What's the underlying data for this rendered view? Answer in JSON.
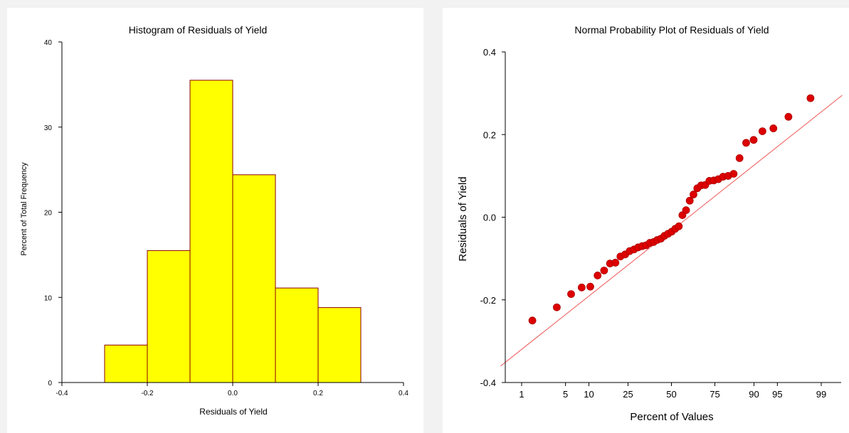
{
  "chart_data": [
    {
      "type": "bar",
      "title": "Histogram of Residuals of Yield",
      "xlabel": "Residuals of Yield",
      "ylabel": "Percent of Total Frequency",
      "xlim": [
        -0.4,
        0.4
      ],
      "ylim": [
        0,
        40
      ],
      "x_ticks": [
        "-0.4",
        "-0.2",
        "0.0",
        "0.2",
        "0.4"
      ],
      "y_ticks": [
        "0",
        "10",
        "20",
        "30",
        "40"
      ],
      "bin_width": 0.1,
      "bins": [
        {
          "start": -0.3,
          "end": -0.2,
          "value": 4.4
        },
        {
          "start": -0.2,
          "end": -0.1,
          "value": 15.5
        },
        {
          "start": -0.1,
          "end": 0.0,
          "value": 35.5
        },
        {
          "start": 0.0,
          "end": 0.1,
          "value": 24.4
        },
        {
          "start": 0.1,
          "end": 0.2,
          "value": 11.1
        },
        {
          "start": 0.2,
          "end": 0.3,
          "value": 8.8
        }
      ],
      "colors": {
        "bar_fill": "#ffff00",
        "bar_stroke": "#8b0000"
      },
      "grid": false
    },
    {
      "type": "scatter",
      "title": "Normal Probability Plot of Residuals of Yield",
      "xlabel": "Percent of Values",
      "ylabel": "Residuals of Yield",
      "x_scale": "normal-probability",
      "x_ticks": [
        "1",
        "5",
        "10",
        "25",
        "50",
        "75",
        "90",
        "95",
        "99"
      ],
      "y_ticks": [
        "-0.4",
        "-0.2",
        "0.0",
        "0.2",
        "0.4"
      ],
      "ylim": [
        -0.4,
        0.4
      ],
      "points": [
        {
          "x": 1.54,
          "y": -0.25
        },
        {
          "x": 3.75,
          "y": -0.218
        },
        {
          "x": 5.96,
          "y": -0.186
        },
        {
          "x": 8.17,
          "y": -0.17
        },
        {
          "x": 10.38,
          "y": -0.168
        },
        {
          "x": 12.58,
          "y": -0.141
        },
        {
          "x": 14.79,
          "y": -0.129
        },
        {
          "x": 17.0,
          "y": -0.112
        },
        {
          "x": 19.21,
          "y": -0.11
        },
        {
          "x": 21.42,
          "y": -0.095
        },
        {
          "x": 23.63,
          "y": -0.09
        },
        {
          "x": 25.83,
          "y": -0.082
        },
        {
          "x": 28.04,
          "y": -0.078
        },
        {
          "x": 30.25,
          "y": -0.073
        },
        {
          "x": 32.46,
          "y": -0.07
        },
        {
          "x": 34.67,
          "y": -0.068
        },
        {
          "x": 36.88,
          "y": -0.062
        },
        {
          "x": 39.09,
          "y": -0.06
        },
        {
          "x": 41.29,
          "y": -0.055
        },
        {
          "x": 43.5,
          "y": -0.052
        },
        {
          "x": 45.71,
          "y": -0.045
        },
        {
          "x": 47.92,
          "y": -0.04
        },
        {
          "x": 50.13,
          "y": -0.035
        },
        {
          "x": 52.34,
          "y": -0.028
        },
        {
          "x": 54.55,
          "y": -0.022
        },
        {
          "x": 56.76,
          "y": 0.005
        },
        {
          "x": 58.97,
          "y": 0.017
        },
        {
          "x": 61.18,
          "y": 0.04
        },
        {
          "x": 63.39,
          "y": 0.055
        },
        {
          "x": 65.6,
          "y": 0.07
        },
        {
          "x": 67.81,
          "y": 0.077
        },
        {
          "x": 70.02,
          "y": 0.078
        },
        {
          "x": 72.23,
          "y": 0.088
        },
        {
          "x": 74.44,
          "y": 0.089
        },
        {
          "x": 76.65,
          "y": 0.092
        },
        {
          "x": 78.86,
          "y": 0.098
        },
        {
          "x": 81.07,
          "y": 0.1
        },
        {
          "x": 83.28,
          "y": 0.105
        },
        {
          "x": 85.49,
          "y": 0.143
        },
        {
          "x": 87.7,
          "y": 0.18
        },
        {
          "x": 89.91,
          "y": 0.187
        },
        {
          "x": 92.12,
          "y": 0.208
        },
        {
          "x": 94.33,
          "y": 0.215
        },
        {
          "x": 96.54,
          "y": 0.243
        },
        {
          "x": 98.46,
          "y": 0.288
        }
      ],
      "reference_line": {
        "from": {
          "x": 0.4,
          "y": -0.36
        },
        "to": {
          "x": 99.6,
          "y": 0.295
        }
      },
      "colors": {
        "point": "#dd0000",
        "point_stroke": "#aa0000",
        "line": "#ee5555"
      },
      "grid": false
    }
  ]
}
